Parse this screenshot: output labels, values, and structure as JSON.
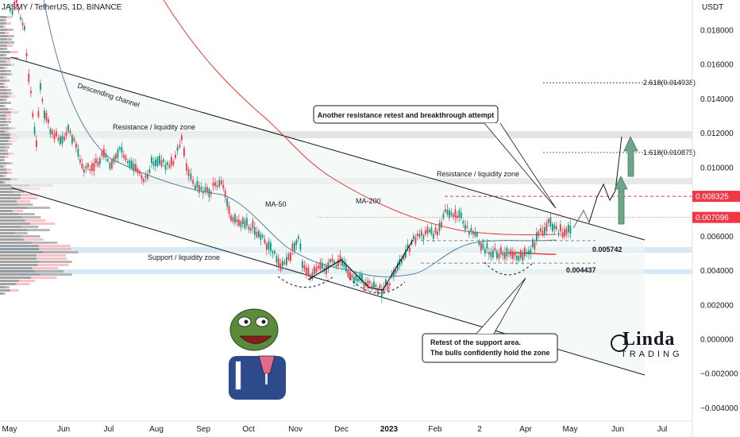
{
  "header": {
    "title": "JASMY / TetherUS, 1D, BINANCE",
    "currency": "USDT"
  },
  "chart_data": {
    "type": "candlestick",
    "ylim": [
      -0.0045,
      0.0195
    ],
    "y_ticks": [
      "0.018000",
      "0.016000",
      "0.014000",
      "0.012000",
      "0.010000",
      "0.006000",
      "0.004000",
      "0.002000",
      "0.000000",
      "−0.002000",
      "−0.004000"
    ],
    "y_tick_values": [
      0.018,
      0.016,
      0.014,
      0.012,
      0.01,
      0.006,
      0.004,
      0.002,
      0.0,
      -0.002,
      -0.004
    ],
    "x_ticks": [
      "May",
      "Jun",
      "Jul",
      "Aug",
      "Sep",
      "Oct",
      "Nov",
      "Dec",
      "2023",
      "Feb",
      "2",
      "Apr",
      "May",
      "Jun",
      "Jul"
    ],
    "price_badges": [
      {
        "label": "0.008325",
        "value": 0.008325,
        "color": "#f23645"
      },
      {
        "label": "0.007096",
        "value": 0.007096,
        "color": "#f23645"
      }
    ],
    "fib_levels": [
      {
        "label": "2.618(0.014938)",
        "value": 0.014938
      },
      {
        "label": "1.618(0.010875)",
        "value": 0.010875
      }
    ],
    "level_labels": [
      {
        "label": "0.005742",
        "value": 0.005742
      },
      {
        "label": "0.004437",
        "value": 0.004437
      }
    ],
    "annotations": {
      "channel": "Descending channel",
      "resistance_top": "Resistance / liquidity zone",
      "resistance_mid": "Resistance / liquidity zone",
      "support": "Support / liquidity zone",
      "ma50": "MA-50",
      "ma200": "MA-200",
      "callout_top": "Another resistance retest and breakthrough attempt",
      "callout_bottom_1": "Retest of the support area.",
      "callout_bottom_2": "The bulls confidently hold the zone"
    },
    "colors": {
      "up": "#089981",
      "down": "#f23645",
      "ma50": "#5b7fa6",
      "ma200": "#e53935",
      "zone": "#cfe2f3",
      "resistance_zone": "#d9d9d9",
      "arrow": "#6fa58a"
    }
  },
  "branding": {
    "name": "Linda",
    "sub": "TRADING"
  }
}
